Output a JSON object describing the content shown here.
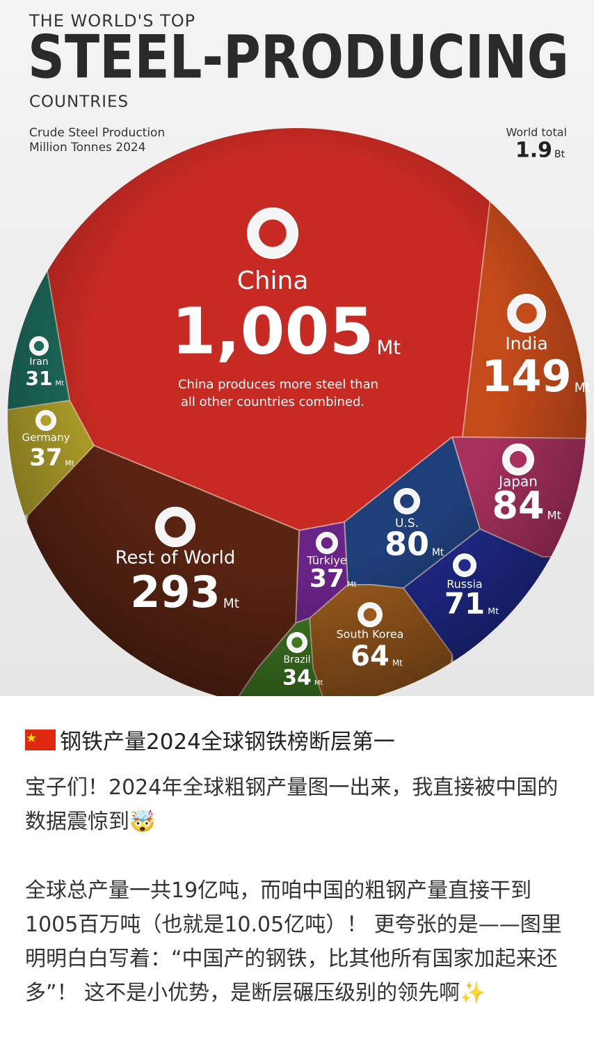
{
  "chart_data": {
    "type": "voronoi",
    "kicker": "THE WORLD'S TOP",
    "title": "STEEL-PRODUCING",
    "title_suffix": "COUNTRIES",
    "subtitle": [
      "Crude Steel Production",
      "Million Tonnes 2024"
    ],
    "world_total_label": "World total",
    "world_total": 1.9,
    "world_total_unit": "Bt",
    "unit": "Mt",
    "annotation": [
      "China produces more steel than",
      "all other countries combined."
    ],
    "categories": [
      "China",
      "India",
      "Japan",
      "U.S.",
      "Russia",
      "South Korea",
      "Türkiye",
      "Brazil",
      "Rest of World",
      "Germany",
      "Iran"
    ],
    "values": [
      1005,
      149,
      84,
      80,
      71,
      64,
      37,
      34,
      293,
      37,
      31
    ],
    "value_labels": [
      "1,005",
      "149",
      "84",
      "80",
      "71",
      "64",
      "37",
      "34",
      "293",
      "37",
      "31"
    ],
    "colors": [
      "#c62a22",
      "#c44a1a",
      "#a8305e",
      "#1f3f7a",
      "#1f2a8c",
      "#9a5a1c",
      "#6a2488",
      "#3f7a22",
      "#5a2412",
      "#b0a02a",
      "#1c6a5a"
    ]
  },
  "post": {
    "title": "钢铁产量2024全球钢铁榜断层第一",
    "paragraphs": [
      "宝子们！2024年全球粗钢产量图一出来，我直接被中国的数据震惊到🤯",
      "全球总产量一共19亿吨，而咱中国的粗钢产量直接干到 1005百万吨（也就是10.05亿吨）！ 更夸张的是——图里明明白白写着：“中国产的钢铁，比其他所有国家加起来还多”！ 这不是小优势，是断层碾压级别的领先啊✨"
    ]
  }
}
